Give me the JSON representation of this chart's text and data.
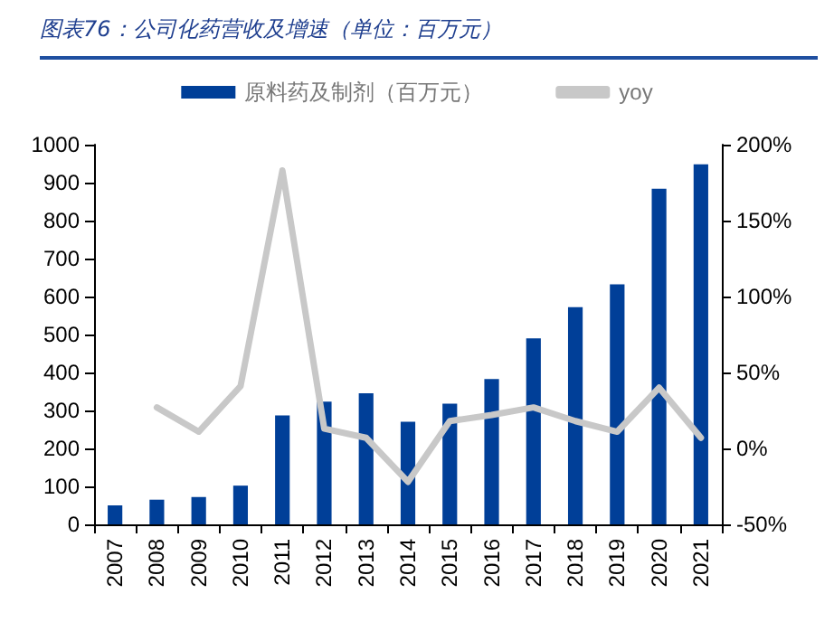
{
  "chart_data": {
    "type": "bar",
    "title": "图表76：公司化药营收及增速（单位：百万元）",
    "categories": [
      "2007",
      "2008",
      "2009",
      "2010",
      "2011",
      "2012",
      "2013",
      "2014",
      "2015",
      "2016",
      "2017",
      "2018",
      "2019",
      "2020",
      "2021"
    ],
    "series": [
      {
        "name": "原料药及制剂（百万元）",
        "color": "#003f98",
        "values": [
          50,
          65,
          72,
          102,
          287,
          323,
          345,
          270,
          318,
          383,
          490,
          572,
          632,
          884,
          948
        ]
      },
      {
        "name": "yoy",
        "type": "line",
        "axis": "y2",
        "color": "#c8c8c8",
        "values": [
          null,
          27,
          11,
          41,
          183,
          13,
          7,
          -22,
          18,
          22,
          27,
          18,
          11,
          40,
          7
        ]
      }
    ],
    "ylim": [
      0,
      1000
    ],
    "yticks": [
      0,
      100,
      200,
      300,
      400,
      500,
      600,
      700,
      800,
      900,
      1000
    ],
    "y2lim": [
      -50,
      200
    ],
    "y2ticks": [
      {
        "value": -50,
        "label": "-50%"
      },
      {
        "value": 0,
        "label": "0%"
      },
      {
        "value": 50,
        "label": "50%"
      },
      {
        "value": 100,
        "label": "100%"
      },
      {
        "value": 150,
        "label": "150%"
      },
      {
        "value": 200,
        "label": "200%"
      }
    ],
    "grid": false,
    "legend": "top",
    "marker": "none",
    "line_style": "solid"
  }
}
